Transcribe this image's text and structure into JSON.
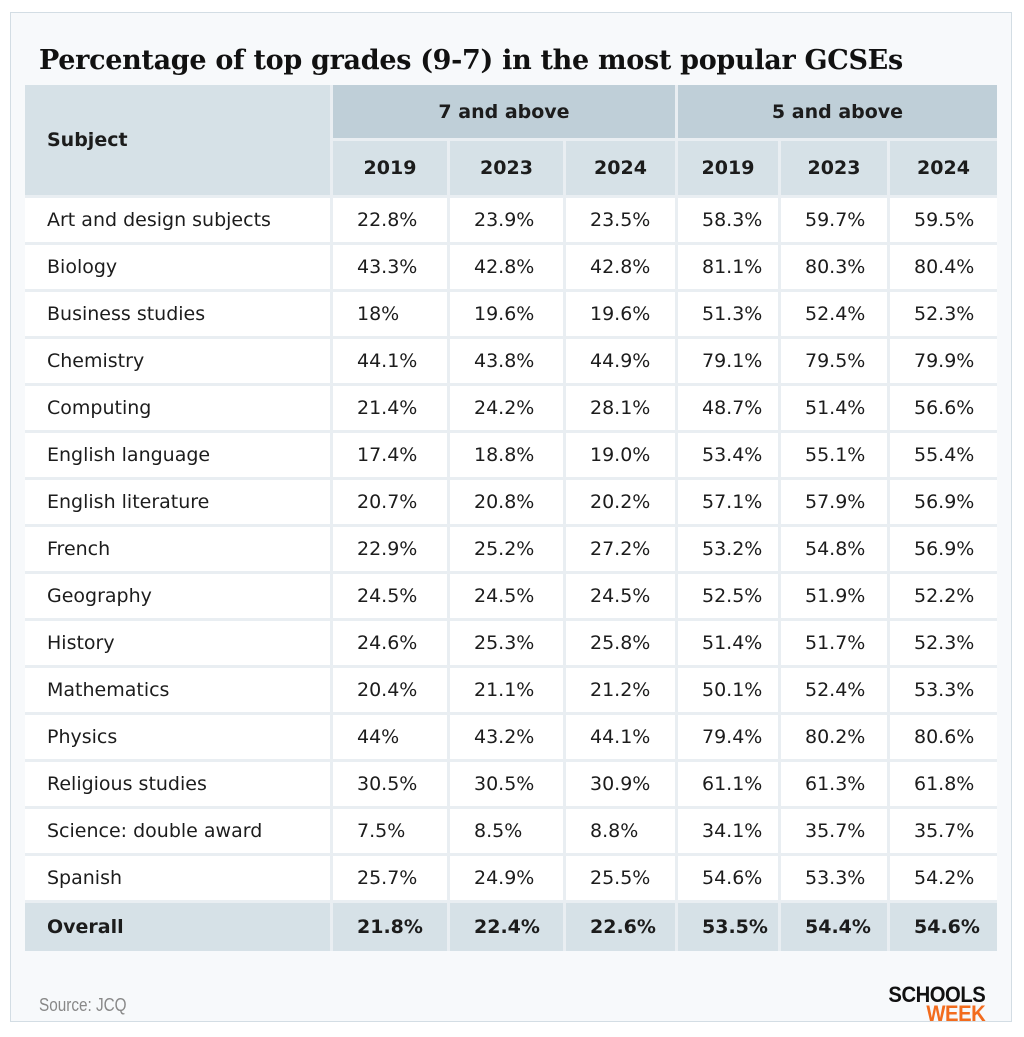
{
  "title": "Percentage of top grades (9-7) in the most popular GCSEs",
  "source": "Source: JCQ",
  "logo": {
    "line1": "SCHOOLS",
    "line2": "WEEK"
  },
  "colors": {
    "header": "#d6e1e7",
    "group_header": "#bfcfd8",
    "logo_accent": "#f26b1d"
  },
  "chart_data": {
    "type": "table",
    "title": "Percentage of top grades (9-7) in the most popular GCSEs",
    "header": {
      "subject": "Subject",
      "groups": [
        "7 and above",
        "5 and above"
      ],
      "years": [
        "2019",
        "2023",
        "2024",
        "2019",
        "2023",
        "2024"
      ]
    },
    "rows": [
      {
        "subject": "Art and design subjects",
        "values": [
          "22.8%",
          "23.9%",
          "23.5%",
          "58.3%",
          "59.7%",
          "59.5%"
        ]
      },
      {
        "subject": "Biology",
        "values": [
          "43.3%",
          "42.8%",
          "42.8%",
          "81.1%",
          "80.3%",
          "80.4%"
        ]
      },
      {
        "subject": "Business studies",
        "values": [
          "18%",
          "19.6%",
          "19.6%",
          "51.3%",
          "52.4%",
          "52.3%"
        ]
      },
      {
        "subject": "Chemistry",
        "values": [
          "44.1%",
          "43.8%",
          "44.9%",
          "79.1%",
          "79.5%",
          "79.9%"
        ]
      },
      {
        "subject": "Computing",
        "values": [
          "21.4%",
          "24.2%",
          "28.1%",
          "48.7%",
          "51.4%",
          "56.6%"
        ]
      },
      {
        "subject": "English language",
        "values": [
          "17.4%",
          "18.8%",
          "19.0%",
          "53.4%",
          "55.1%",
          "55.4%"
        ]
      },
      {
        "subject": "English literature",
        "values": [
          "20.7%",
          "20.8%",
          "20.2%",
          "57.1%",
          "57.9%",
          "56.9%"
        ]
      },
      {
        "subject": "French",
        "values": [
          "22.9%",
          "25.2%",
          "27.2%",
          "53.2%",
          "54.8%",
          "56.9%"
        ]
      },
      {
        "subject": "Geography",
        "values": [
          "24.5%",
          "24.5%",
          "24.5%",
          "52.5%",
          "51.9%",
          "52.2%"
        ]
      },
      {
        "subject": "History",
        "values": [
          "24.6%",
          "25.3%",
          "25.8%",
          "51.4%",
          "51.7%",
          "52.3%"
        ]
      },
      {
        "subject": "Mathematics",
        "values": [
          "20.4%",
          "21.1%",
          "21.2%",
          "50.1%",
          "52.4%",
          "53.3%"
        ]
      },
      {
        "subject": "Physics",
        "values": [
          "44%",
          "43.2%",
          "44.1%",
          "79.4%",
          "80.2%",
          "80.6%"
        ]
      },
      {
        "subject": "Religious studies",
        "values": [
          "30.5%",
          "30.5%",
          "30.9%",
          "61.1%",
          "61.3%",
          "61.8%"
        ]
      },
      {
        "subject": "Science: double award",
        "values": [
          "7.5%",
          "8.5%",
          "8.8%",
          "34.1%",
          "35.7%",
          "35.7%"
        ]
      },
      {
        "subject": "Spanish",
        "values": [
          "25.7%",
          "24.9%",
          "25.5%",
          "54.6%",
          "53.3%",
          "54.2%"
        ]
      }
    ],
    "overall": {
      "subject": "Overall",
      "values": [
        "21.8%",
        "22.4%",
        "22.6%",
        "53.5%",
        "54.4%",
        "54.6%"
      ]
    }
  }
}
